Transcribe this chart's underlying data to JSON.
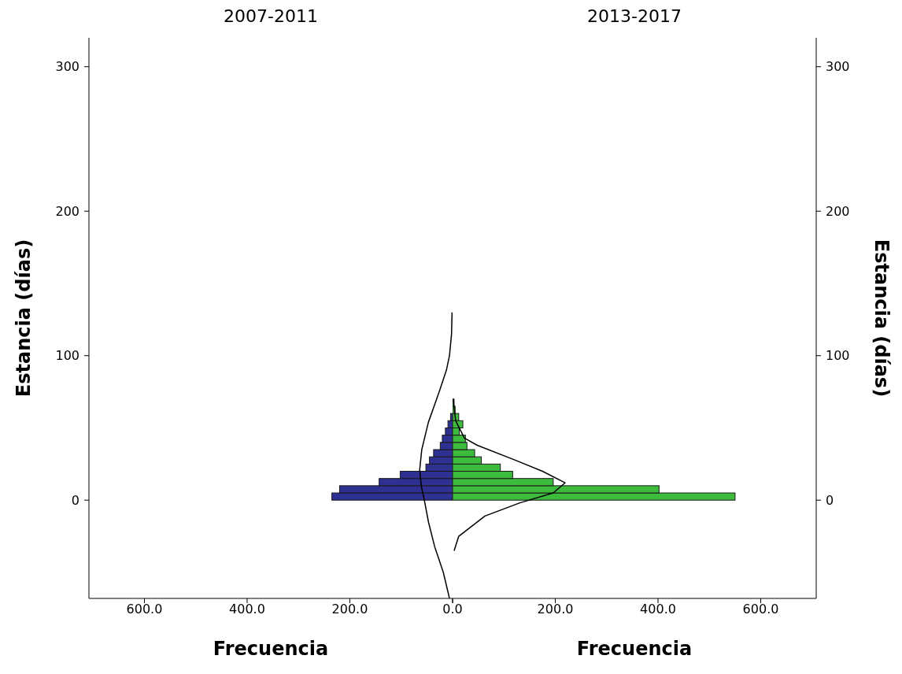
{
  "chart_data": [
    {
      "type": "histogram",
      "title": "2007-2011",
      "xlabel": "Frecuencia",
      "ylabel": "Estancia (días)",
      "orientation": "horizontal",
      "xlim": [
        708,
        0
      ],
      "xticks": [
        {
          "value": 600,
          "label": "600.0"
        },
        {
          "value": 400,
          "label": "400.0"
        },
        {
          "value": 200,
          "label": "200.0"
        },
        {
          "value": 0,
          "label": "0.0"
        }
      ],
      "ylim": [
        -68,
        320
      ],
      "yticks": [
        0,
        100,
        200,
        300
      ],
      "bins": [
        0,
        5,
        10,
        15,
        20,
        25,
        30,
        35,
        40,
        45,
        50,
        55,
        60
      ],
      "series": [
        {
          "type": "histogram",
          "color": "#2e3192",
          "values": [
            235,
            220,
            143,
            102,
            52,
            45,
            37,
            24,
            20,
            14,
            9,
            4
          ]
        },
        {
          "type": "line",
          "color": "#000000",
          "x": [
            -68,
            -50,
            -32,
            -15,
            0,
            10,
            21,
            35,
            54,
            75,
            90,
            100,
            115,
            130
          ],
          "values": [
            6,
            18,
            35,
            47,
            55,
            61,
            64,
            60,
            47,
            26,
            12,
            6,
            2,
            1
          ]
        }
      ]
    },
    {
      "type": "histogram",
      "title": "2013-2017",
      "xlabel": "Frecuencia",
      "ylabel": "Estancia (días)",
      "orientation": "horizontal",
      "xlim": [
        0,
        708
      ],
      "xticks": [
        {
          "value": 0,
          "label": null
        },
        {
          "value": 200,
          "label": "200.0"
        },
        {
          "value": 400,
          "label": "400.0"
        },
        {
          "value": 600,
          "label": "600.0"
        }
      ],
      "ylim": [
        -68,
        320
      ],
      "yticks": [
        0,
        100,
        200,
        300
      ],
      "bins": [
        0,
        5,
        10,
        15,
        20,
        25,
        30,
        35,
        40,
        45,
        50,
        55,
        60,
        65,
        70
      ],
      "series": [
        {
          "type": "histogram",
          "color": "#3dbb3d",
          "values": [
            550,
            402,
            196,
            117,
            93,
            56,
            43,
            28,
            25,
            13,
            20,
            12,
            5,
            3
          ]
        },
        {
          "type": "line",
          "color": "#000000",
          "x": [
            -35,
            -25,
            -11,
            -2,
            5,
            12,
            20,
            28,
            38,
            43,
            55,
            70
          ],
          "values": [
            3,
            12,
            63,
            130,
            196,
            219,
            175,
            120,
            48,
            23,
            6,
            1
          ]
        }
      ]
    }
  ]
}
